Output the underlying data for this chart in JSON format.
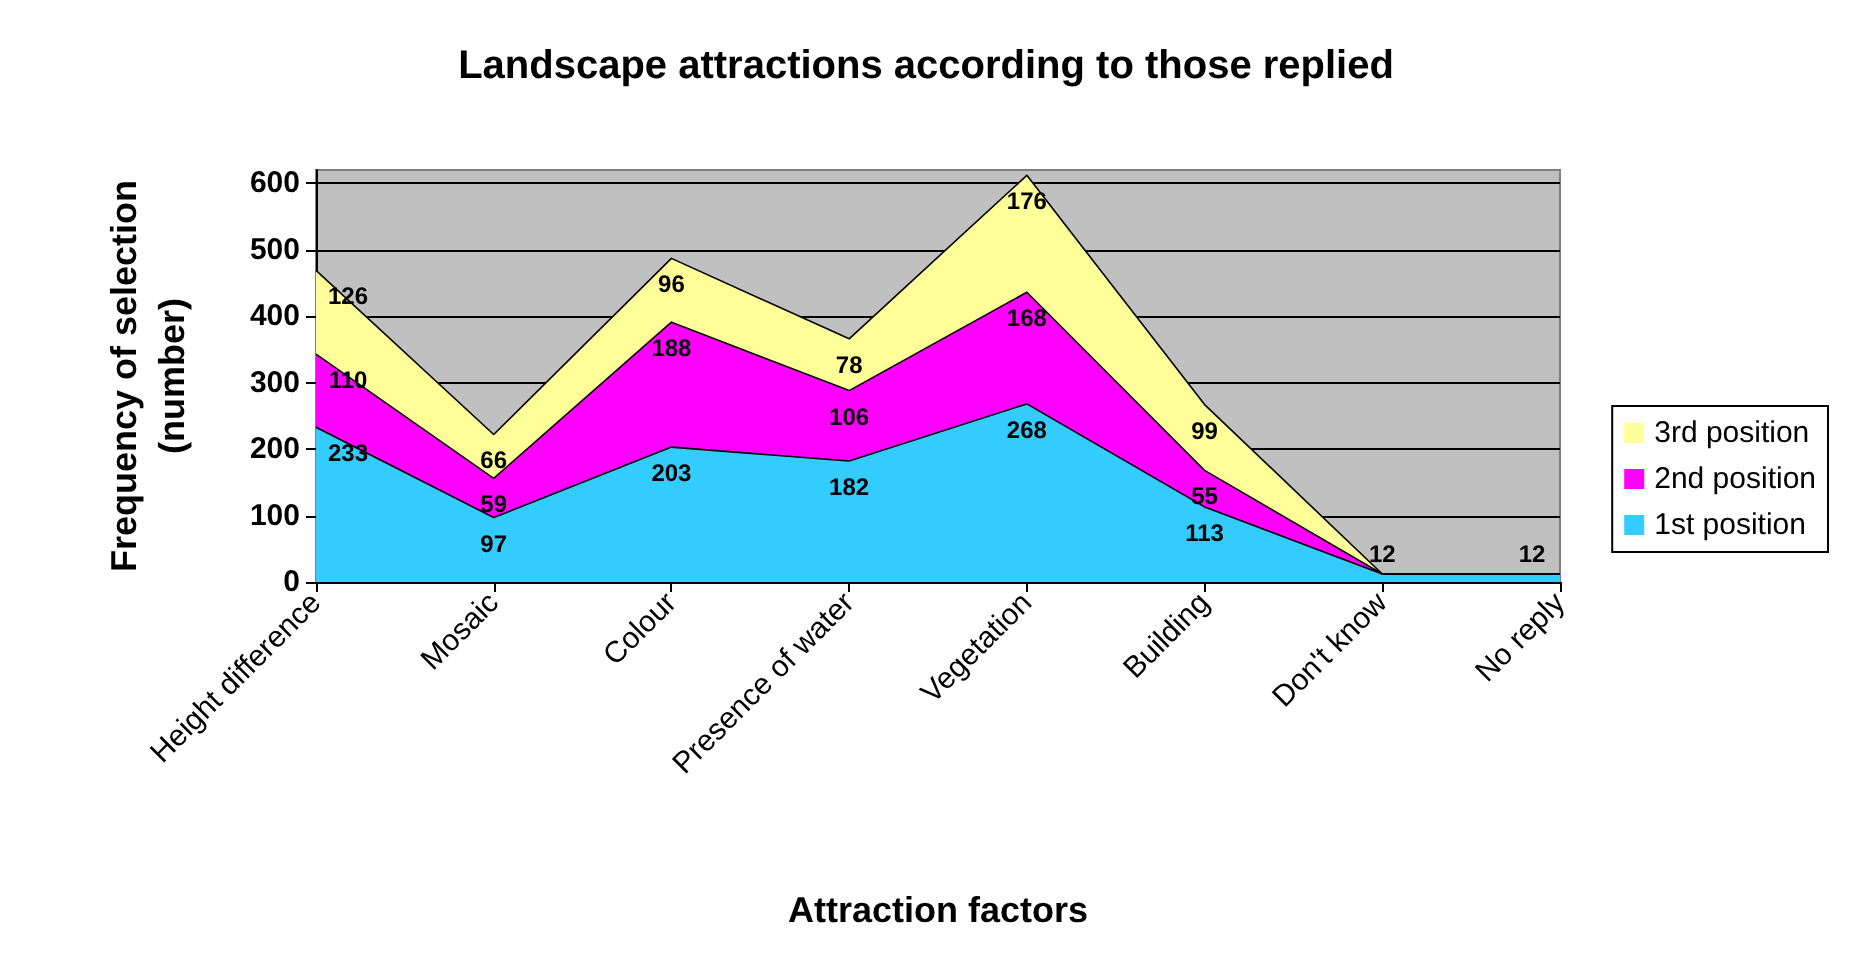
{
  "chart_data": {
    "type": "area",
    "title": "Landscape attractions according to those replied",
    "xlabel": "Attraction factors",
    "ylabel": "Frequency of selection\n(number)",
    "categories": [
      "Height difference",
      "Mosaic",
      "Colour",
      "Presence of water",
      "Vegetation",
      "Building",
      "Don't know",
      "No reply"
    ],
    "stacked": true,
    "ylim": [
      0,
      620
    ],
    "yticks": [
      0,
      100,
      200,
      300,
      400,
      500,
      600
    ],
    "grid": "y",
    "legend": "right",
    "series": [
      {
        "name": "1st position",
        "color": "#33ccff",
        "values": [
          233,
          97,
          203,
          182,
          268,
          113,
          12,
          12
        ],
        "value_labels": [
          "233",
          "97",
          "203",
          "182",
          "268",
          "113",
          "12",
          "12"
        ]
      },
      {
        "name": "2nd position",
        "color": "#ff00ff",
        "values": [
          110,
          59,
          188,
          106,
          168,
          55,
          0,
          0
        ],
        "value_labels": [
          "110",
          "59",
          "188",
          "106",
          "168",
          "55",
          null,
          null
        ]
      },
      {
        "name": "3rd position",
        "color": "#ffff99",
        "values": [
          126,
          66,
          96,
          78,
          176,
          99,
          0,
          0
        ],
        "value_labels": [
          "126",
          "66",
          "96",
          "78",
          "176",
          "99",
          null,
          null
        ]
      }
    ]
  }
}
